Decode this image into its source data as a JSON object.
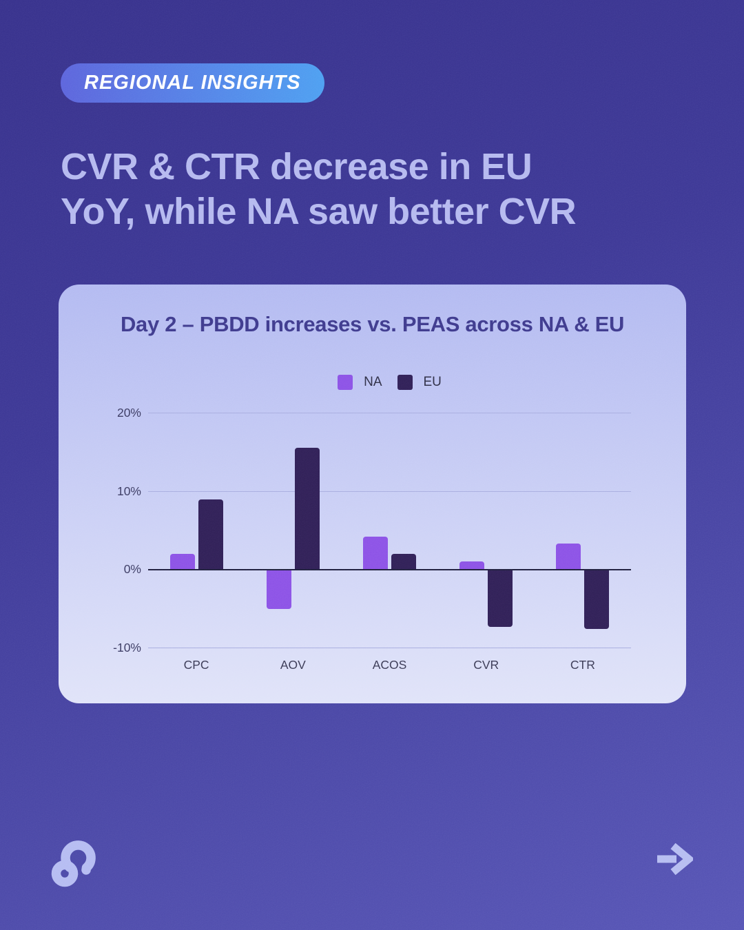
{
  "badge": {
    "label": "REGIONAL INSIGHTS"
  },
  "headline": {
    "line1": "CVR & CTR decrease in EU",
    "line2": "YoY, while NA saw better CVR"
  },
  "chart_data": {
    "type": "bar",
    "title": "Day 2 – PBDD increases vs. PEAS across NA & EU",
    "categories": [
      "CPC",
      "AOV",
      "ACOS",
      "CVR",
      "CTR"
    ],
    "series": [
      {
        "name": "NA",
        "color": "#8c52e6",
        "values": [
          2,
          -5,
          4.2,
          1,
          3.3
        ]
      },
      {
        "name": "EU",
        "color": "#302057",
        "values": [
          8.9,
          15.5,
          2,
          -7.3,
          -7.5
        ]
      }
    ],
    "ylabel": "",
    "y_ticks": [
      "20%",
      "10%",
      "0%",
      "-10%"
    ],
    "y_tick_values": [
      20,
      10,
      0,
      -10
    ],
    "ylim": [
      -10,
      20
    ],
    "grid": true,
    "legend_position": "top-center",
    "zero_line": true
  },
  "footer": {
    "logo_icon": "loop-p-logo",
    "next_icon": "arrow-right"
  },
  "colors": {
    "na_series": "#8c52e6",
    "eu_series": "#302057",
    "badge_gradient_left": "#5c64dc",
    "badge_gradient_right": "#4d9ff1",
    "headline_text": "#b5b9ef",
    "card_top": "#b3baf1",
    "card_bottom": "#e0e3f9",
    "background_top": "#37318c",
    "background_bottom": "#5755b6"
  }
}
